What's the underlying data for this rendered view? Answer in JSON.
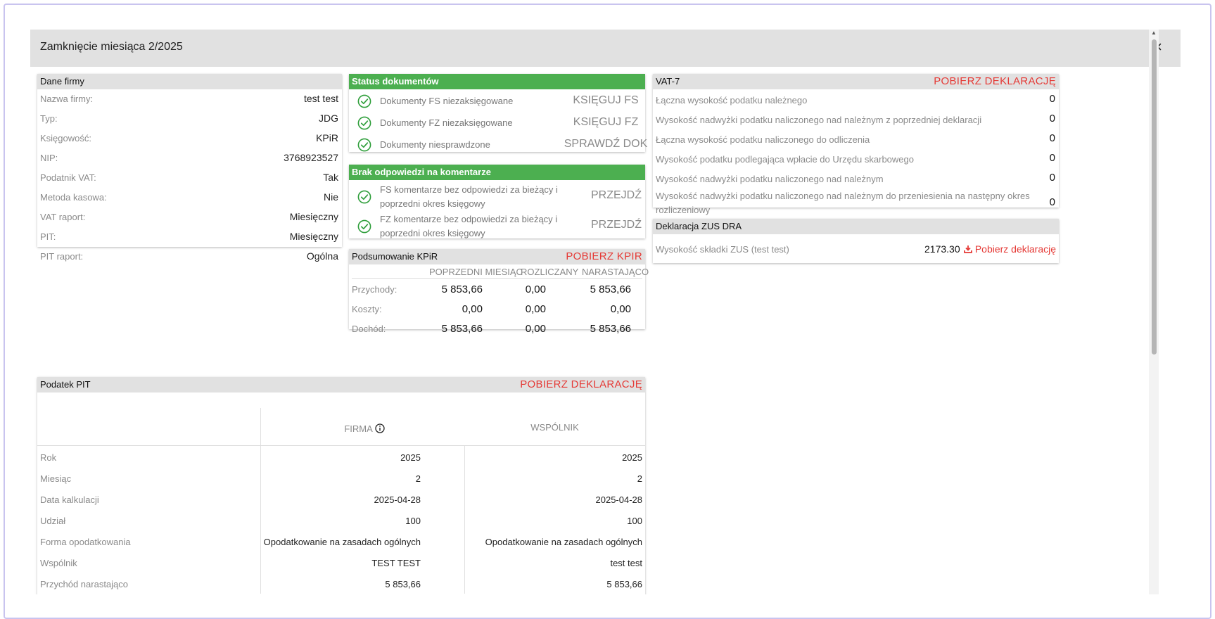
{
  "dialog": {
    "title": "Zamknięcie miesiąca 2/2025",
    "close_symbol": "×"
  },
  "company": {
    "title": "Dane firmy",
    "rows": [
      {
        "label": "Nazwa firmy:",
        "value": "test test"
      },
      {
        "label": "Typ:",
        "value": "JDG"
      },
      {
        "label": "Księgowość:",
        "value": "KPiR"
      },
      {
        "label": "NIP:",
        "value": "3768923527"
      },
      {
        "label": "Podatnik VAT:",
        "value": "Tak"
      },
      {
        "label": "Metoda kasowa:",
        "value": "Nie"
      },
      {
        "label": "VAT raport:",
        "value": "Miesięczny"
      },
      {
        "label": "PIT:",
        "value": "Miesięczny"
      },
      {
        "label": "PIT raport:",
        "value": "Ogólna"
      }
    ]
  },
  "doc_status": {
    "title": "Status dokumentów",
    "rows": [
      {
        "text": "Dokumenty FS niezaksięgowane",
        "action": "KSIĘGUJ FS"
      },
      {
        "text": "Dokumenty FZ niezaksięgowane",
        "action": "KSIĘGUJ FZ"
      },
      {
        "text": "Dokumenty niesprawdzone",
        "action": "SPRAWDŹ DOK"
      }
    ]
  },
  "comments": {
    "title": "Brak odpowiedzi na komentarze",
    "rows": [
      {
        "text": "FS komentarze bez odpowiedzi za bieżący i poprzedni okres księgowy",
        "action": "PRZEJDŹ"
      },
      {
        "text": "FZ komentarze bez odpowiedzi za bieżący i poprzedni okres księgowy",
        "action": "PRZEJDŹ"
      }
    ]
  },
  "kpir": {
    "title": "Podsumowanie KPiR",
    "action": "POBIERZ KPIR",
    "columns": [
      "POPRZEDNI MIESIĄC",
      "ROZLICZANY",
      "NARASTAJĄCO"
    ],
    "rows": [
      {
        "label": "Przychody:",
        "values": [
          "5 853,66",
          "0,00",
          "5 853,66"
        ]
      },
      {
        "label": "Koszty:",
        "values": [
          "0,00",
          "0,00",
          "0,00"
        ]
      },
      {
        "label": "Dochód:",
        "values": [
          "5 853,66",
          "0,00",
          "5 853,66"
        ]
      }
    ]
  },
  "vat7": {
    "title": "VAT-7",
    "action": "POBIERZ DEKLARACJĘ",
    "rows": [
      {
        "label": "Łączna wysokość podatku należnego",
        "value": "0"
      },
      {
        "label": "Wysokość nadwyżki podatku naliczonego nad należnym z poprzedniej deklaracji",
        "value": "0"
      },
      {
        "label": "Łączna wysokość podatku naliczonego do odliczenia",
        "value": "0"
      },
      {
        "label": "Wysokość podatku podlegająca wpłacie do Urzędu skarbowego",
        "value": "0"
      },
      {
        "label": "Wysokość nadwyżki podatku naliczonego nad należnym",
        "value": "0"
      },
      {
        "label": "Wysokość nadwyżki podatku naliczonego nad należnym do przeniesienia na następny okres rozliczeniowy",
        "value": "0"
      }
    ]
  },
  "zus": {
    "title": "Deklaracja ZUS DRA",
    "label": "Wysokość składki ZUS (test test)",
    "value": "2173.30",
    "action": "Pobierz deklarację"
  },
  "pit": {
    "title": "Podatek PIT",
    "action": "POBIERZ DEKLARACJĘ",
    "col1": "FIRMA",
    "col2": "WSPÓLNIK",
    "rows": [
      {
        "label": "Rok",
        "firma": "2025",
        "wspolnik": "2025"
      },
      {
        "label": "Miesiąc",
        "firma": "2",
        "wspolnik": "2"
      },
      {
        "label": "Data kalkulacji",
        "firma": "2025-04-28",
        "wspolnik": "2025-04-28"
      },
      {
        "label": "Udział",
        "firma": "100",
        "wspolnik": "100"
      },
      {
        "label": "Forma opodatkowania",
        "firma": "Opodatkowanie na zasadach ogólnych",
        "wspolnik": "Opodatkowanie na zasadach ogólnych"
      },
      {
        "label": "Wspólnik",
        "firma": "TEST TEST",
        "wspolnik": "test test"
      },
      {
        "label": "Przychód narastająco",
        "firma": "5 853,66",
        "wspolnik": "5 853,66"
      }
    ]
  },
  "colors": {
    "accent_green": "#4caf50",
    "accent_red": "#e53935",
    "header_gray": "#e1e1e1"
  }
}
